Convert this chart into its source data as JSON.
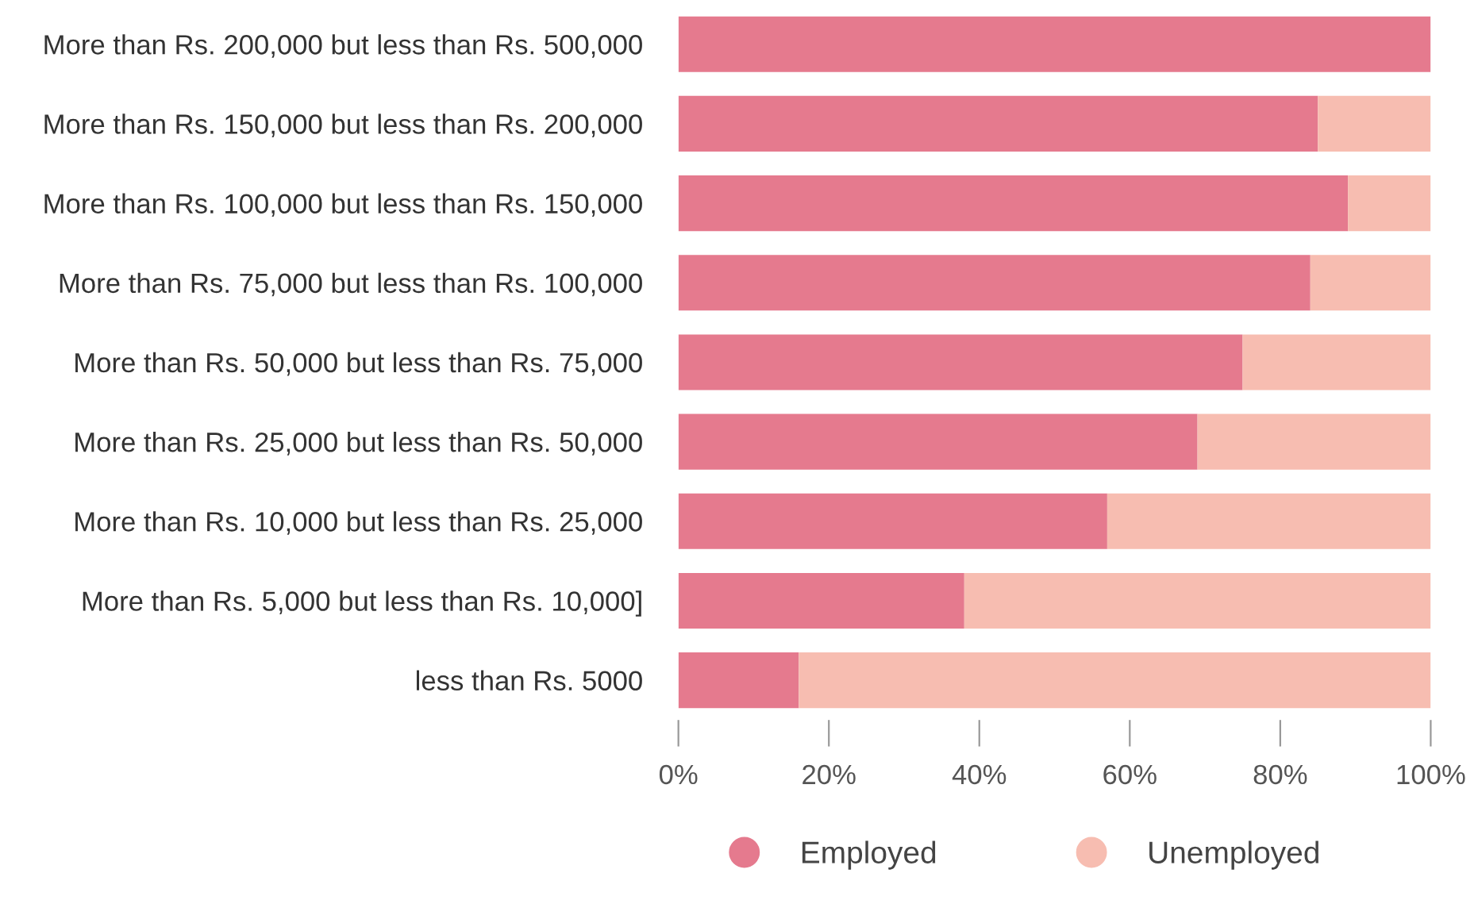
{
  "chart_data": {
    "type": "bar",
    "orientation": "horizontal",
    "stacked": true,
    "categories": [
      "More than Rs. 200,000 but less than Rs. 500,000",
      "More than Rs. 150,000 but less than Rs. 200,000",
      "More than Rs. 100,000 but less than Rs. 150,000",
      "More than Rs. 75,000 but less than Rs. 100,000",
      "More than Rs. 50,000 but less than Rs. 75,000",
      "More than Rs. 25,000 but less than Rs. 50,000",
      "More than Rs. 10,000 but less than Rs. 25,000",
      "More than Rs. 5,000 but less than Rs. 10,000]",
      "less than Rs. 5000"
    ],
    "series": [
      {
        "name": "Employed",
        "color": "#e57a8e",
        "values": [
          100,
          85,
          89,
          84,
          75,
          69,
          57,
          38,
          16
        ]
      },
      {
        "name": "Unemployed",
        "color": "#f7bdb1",
        "values": [
          0,
          15,
          11,
          16,
          25,
          31,
          43,
          62,
          84
        ]
      }
    ],
    "xlim": [
      0,
      100
    ],
    "xticks": [
      {
        "value": 0,
        "label": "0%"
      },
      {
        "value": 20,
        "label": "20%"
      },
      {
        "value": 40,
        "label": "40%"
      },
      {
        "value": 60,
        "label": "60%"
      },
      {
        "value": 80,
        "label": "80%"
      },
      {
        "value": 100,
        "label": "100%"
      }
    ],
    "grid": false,
    "legend": "bottom"
  }
}
